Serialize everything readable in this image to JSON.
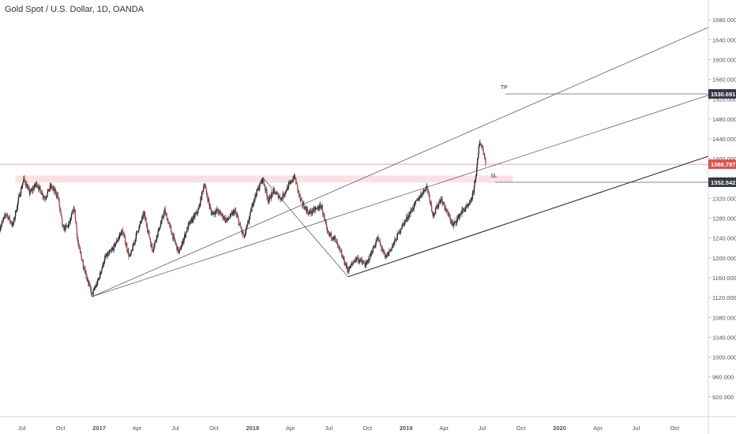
{
  "chart_data": {
    "type": "candlestick",
    "title": "Gold Spot / U.S. Dollar, 1D, OANDA",
    "x_ticks": [
      "Jul",
      "Oct",
      "2017",
      "Apr",
      "Jul",
      "Oct",
      "2018",
      "Apr",
      "Jul",
      "Oct",
      "2019",
      "Apr",
      "Jul",
      "Oct",
      "2020",
      "Apr",
      "Jul",
      "Oct"
    ],
    "y_ticks": [
      920,
      960,
      1000,
      1040,
      1080,
      1120,
      1160,
      1200,
      1240,
      1280,
      1320,
      1360,
      1400,
      1440,
      1480,
      1520,
      1560,
      1600,
      1640,
      1680
    ],
    "y_tick_labels": [
      "920.000",
      "960.000",
      "1000.000",
      "1040.000",
      "1080.000",
      "1120.000",
      "1160.000",
      "1200.000",
      "1240.000",
      "1280.000",
      "1320.000",
      "1360.000",
      "1400.000",
      "1440.000",
      "1480.000",
      "1520.000",
      "1560.000",
      "1600.000",
      "1640.000",
      "1680.000"
    ],
    "ylim": [
      880,
      1720
    ],
    "xlim": [
      "2016-05-10",
      "2020-12-20"
    ],
    "price_path": [
      [
        "2016-05-10",
        1260
      ],
      [
        "2016-05-25",
        1290
      ],
      [
        "2016-06-10",
        1265
      ],
      [
        "2016-06-24",
        1320
      ],
      [
        "2016-07-06",
        1360
      ],
      [
        "2016-07-20",
        1330
      ],
      [
        "2016-08-05",
        1350
      ],
      [
        "2016-08-25",
        1320
      ],
      [
        "2016-09-08",
        1345
      ],
      [
        "2016-09-25",
        1325
      ],
      [
        "2016-10-07",
        1258
      ],
      [
        "2016-10-20",
        1265
      ],
      [
        "2016-11-03",
        1300
      ],
      [
        "2016-11-12",
        1228
      ],
      [
        "2016-11-25",
        1185
      ],
      [
        "2016-12-15",
        1125
      ],
      [
        "2016-12-28",
        1150
      ],
      [
        "2017-01-15",
        1200
      ],
      [
        "2017-02-01",
        1215
      ],
      [
        "2017-02-25",
        1255
      ],
      [
        "2017-03-15",
        1200
      ],
      [
        "2017-04-01",
        1250
      ],
      [
        "2017-04-18",
        1290
      ],
      [
        "2017-05-08",
        1215
      ],
      [
        "2017-06-06",
        1295
      ],
      [
        "2017-06-25",
        1245
      ],
      [
        "2017-07-10",
        1210
      ],
      [
        "2017-08-01",
        1265
      ],
      [
        "2017-08-25",
        1295
      ],
      [
        "2017-09-08",
        1350
      ],
      [
        "2017-09-25",
        1290
      ],
      [
        "2017-10-10",
        1295
      ],
      [
        "2017-11-01",
        1275
      ],
      [
        "2017-11-20",
        1295
      ],
      [
        "2017-12-12",
        1240
      ],
      [
        "2018-01-05",
        1320
      ],
      [
        "2018-01-25",
        1360
      ],
      [
        "2018-02-08",
        1315
      ],
      [
        "2018-02-20",
        1335
      ],
      [
        "2018-03-10",
        1320
      ],
      [
        "2018-04-11",
        1365
      ],
      [
        "2018-04-25",
        1315
      ],
      [
        "2018-05-15",
        1290
      ],
      [
        "2018-06-14",
        1305
      ],
      [
        "2018-06-28",
        1250
      ],
      [
        "2018-07-15",
        1240
      ],
      [
        "2018-08-16",
        1175
      ],
      [
        "2018-09-05",
        1200
      ],
      [
        "2018-09-28",
        1185
      ],
      [
        "2018-10-26",
        1240
      ],
      [
        "2018-11-13",
        1200
      ],
      [
        "2018-12-01",
        1225
      ],
      [
        "2018-12-20",
        1260
      ],
      [
        "2019-01-10",
        1290
      ],
      [
        "2019-01-31",
        1320
      ],
      [
        "2019-02-20",
        1345
      ],
      [
        "2019-03-07",
        1285
      ],
      [
        "2019-03-25",
        1320
      ],
      [
        "2019-04-23",
        1265
      ],
      [
        "2019-05-15",
        1295
      ],
      [
        "2019-05-31",
        1305
      ],
      [
        "2019-06-10",
        1330
      ],
      [
        "2019-06-20",
        1390
      ],
      [
        "2019-06-25",
        1435
      ],
      [
        "2019-07-03",
        1420
      ],
      [
        "2019-07-10",
        1390
      ]
    ],
    "resistance_zone": {
      "from": "2016-06-15",
      "to": "2019-09-12",
      "y_low": 1352,
      "y_high": 1366
    },
    "channel_lines": [
      {
        "p1": [
          "2016-12-15",
          1122
        ],
        "p2": [
          "2020-12-20",
          1665
        ]
      },
      {
        "p1": [
          "2016-12-15",
          1122
        ],
        "p2": [
          "2020-12-20",
          1528
        ]
      },
      {
        "p1": [
          "2018-08-16",
          1162
        ],
        "p2": [
          "2020-12-20",
          1405
        ]
      },
      {
        "p1": [
          "2018-01-25",
          1362
        ],
        "p2": [
          "2018-08-16",
          1162
        ]
      }
    ],
    "annotations": [
      {
        "label": "TP",
        "date": "2019-08-25",
        "value": 1530.691
      },
      {
        "label": "SL",
        "date": "2019-08-01",
        "value": 1352.542
      }
    ],
    "price_tags": [
      {
        "text": "1530.691",
        "value": 1530.691,
        "color": "#363a45"
      },
      {
        "text": "1388.797",
        "value": 1388.797,
        "color": "#d9534f"
      },
      {
        "text": "1352.542",
        "value": 1352.542,
        "color": "#363a45"
      }
    ],
    "current_price": 1388.797
  }
}
